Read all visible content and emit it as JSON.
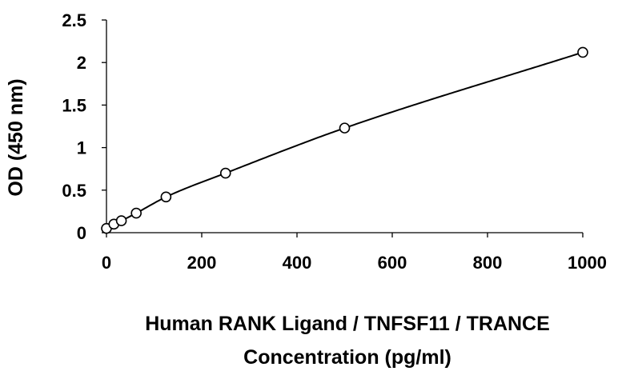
{
  "chart_data": {
    "type": "scatter",
    "xlabel_lines": [
      "Human RANK Ligand / TNFSF11 / TRANCE",
      "Concentration (pg/ml)"
    ],
    "ylabel": "OD (450 nm)",
    "xlim": [
      0,
      1000
    ],
    "ylim": [
      0,
      2.5
    ],
    "x_ticks": [
      0,
      200,
      400,
      600,
      800,
      1000
    ],
    "x_tick_labels": [
      "0",
      "200",
      "400",
      "600",
      "800",
      "1000"
    ],
    "y_ticks": [
      0,
      0.5,
      1,
      1.5,
      2,
      2.5
    ],
    "y_tick_labels": [
      "0",
      "0.5",
      "1",
      "1.5",
      "2",
      "2.5"
    ],
    "grid": false,
    "legend": false,
    "fit_line": true,
    "series": [
      {
        "marker": "open-circle",
        "x": [
          0,
          15.6,
          31.25,
          62.5,
          125,
          250,
          500,
          1000
        ],
        "y": [
          0.05,
          0.1,
          0.14,
          0.23,
          0.42,
          0.7,
          1.23,
          2.12
        ]
      }
    ]
  }
}
